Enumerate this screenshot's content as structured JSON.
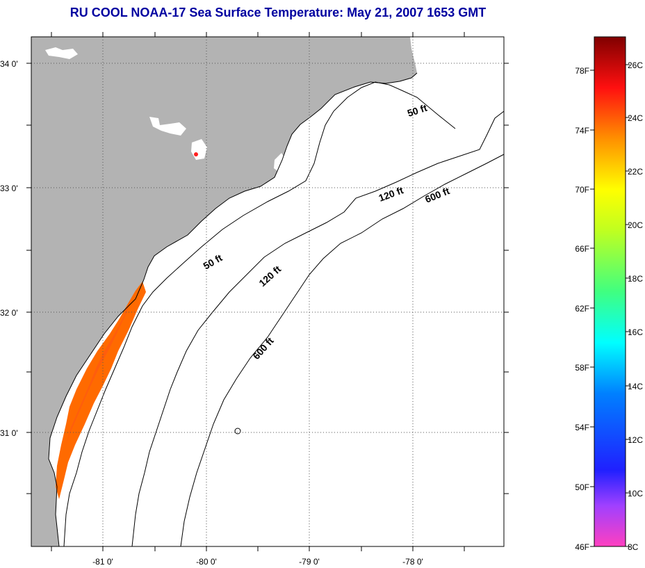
{
  "title": "RU COOL  NOAA-17  Sea Surface Temperature:  May 21, 2007 1653 GMT",
  "map": {
    "lat_labels": [
      "34 0'",
      "33 0'",
      "32 0'",
      "31 0'"
    ],
    "lon_labels": [
      "-81 0'",
      "-80 0'",
      "-79 0'",
      "-78 0'"
    ],
    "contour_labels": [
      {
        "text": "50 ft"
      },
      {
        "text": "120 ft"
      },
      {
        "text": "600 ft"
      },
      {
        "text": "50 ft"
      },
      {
        "text": "120 ft"
      },
      {
        "text": "600 ft"
      }
    ]
  },
  "colorbar": {
    "fahrenheit_labels": [
      "78F",
      "74F",
      "70F",
      "66F",
      "62F",
      "58F",
      "54F",
      "50F",
      "46F"
    ],
    "celsius_labels": [
      "26C",
      "24C",
      "22C",
      "20C",
      "18C",
      "16C",
      "14C",
      "12C",
      "10C",
      "8C"
    ]
  },
  "colors": {
    "title": "#0000a0",
    "land": "#b3b3b3",
    "sst_warm": "#ff6a00"
  }
}
